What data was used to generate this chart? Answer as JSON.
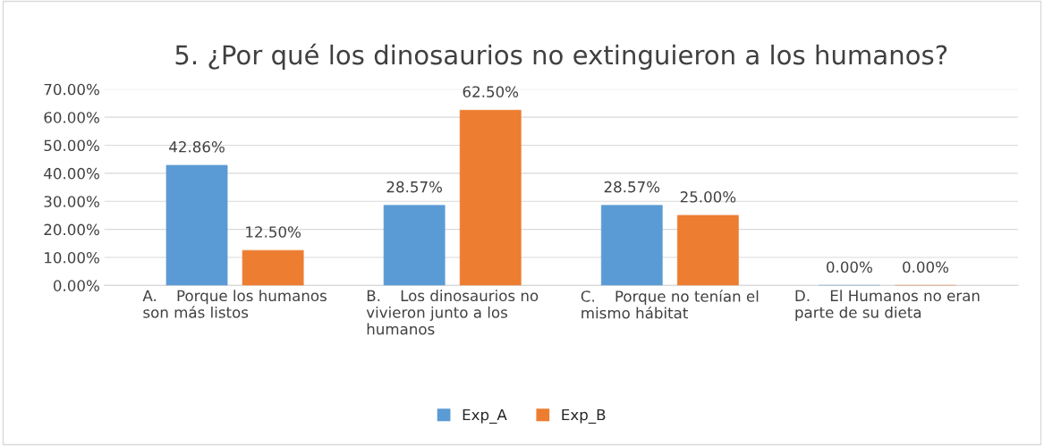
{
  "chart_data": {
    "type": "bar",
    "title": "5. ¿Por qué los dinosaurios no extinguieron a los humanos?",
    "categories": [
      "A.    Porque los humanos\nson más listos",
      "B.    Los dinosaurios no\nvivieron junto a los\nhumanos",
      "C.    Porque no tenían el\nmismo hábitat",
      "D.    El Humanos no eran\nparte de su dieta"
    ],
    "series": [
      {
        "name": "Exp_A",
        "color": "#5b9bd5",
        "values": [
          42.86,
          28.57,
          28.57,
          0
        ],
        "value_labels": [
          "42.86%",
          "28.57%",
          "28.57%",
          "0.00%"
        ]
      },
      {
        "name": "Exp_B",
        "color": "#ed7d31",
        "values": [
          12.5,
          62.5,
          25,
          0
        ],
        "value_labels": [
          "12.50%",
          "62.50%",
          "25.00%",
          "0.00%"
        ]
      }
    ],
    "ylim": [
      0,
      70
    ],
    "yticks": [
      {
        "value": 0,
        "label": "0.00%"
      },
      {
        "value": 10,
        "label": "10.00%"
      },
      {
        "value": 20,
        "label": "20.00%"
      },
      {
        "value": 30,
        "label": "30.00%"
      },
      {
        "value": 40,
        "label": "40.00%"
      },
      {
        "value": 50,
        "label": "50.00%"
      },
      {
        "value": 60,
        "label": "60.00%"
      },
      {
        "value": 70,
        "label": "70.00%"
      }
    ],
    "grid": "y",
    "legend": "bottom"
  }
}
